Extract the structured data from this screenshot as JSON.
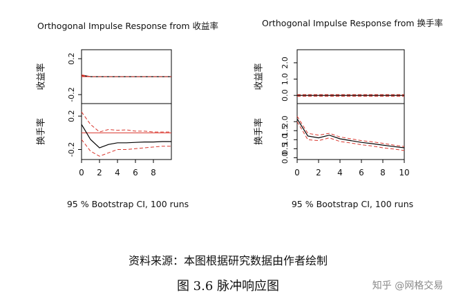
{
  "chart_data": [
    {
      "type": "line",
      "title": "Orthogonal Impulse Response from 收益率",
      "footer": "95 % Bootstrap CI,  100 runs",
      "x": [
        0,
        1,
        2,
        3,
        4,
        5,
        6,
        7,
        8,
        9,
        10
      ],
      "x_ticks": [
        "0",
        "2",
        "4",
        "6",
        "8"
      ],
      "panels": [
        {
          "label": "收益率",
          "ylim": [
            -0.3,
            0.3
          ],
          "y_ticks": [
            "0.2",
            "-0.2"
          ],
          "y_tick_values": [
            0.2,
            -0.2
          ],
          "zero_line": true,
          "series": [
            {
              "role": "estimate",
              "values": [
                0.015,
                0.0,
                0.0,
                0.0,
                0.0,
                0.0,
                0.0,
                0.0,
                0.0,
                0.0,
                0.0
              ]
            },
            {
              "role": "upper",
              "values": [
                0.02,
                0.0,
                0.0,
                0.0,
                0.0,
                0.0,
                0.0,
                0.0,
                0.0,
                0.0,
                0.0
              ]
            },
            {
              "role": "lower",
              "values": [
                0.01,
                0.0,
                0.0,
                0.0,
                0.0,
                0.0,
                0.0,
                0.0,
                0.0,
                0.0,
                0.0
              ]
            }
          ]
        },
        {
          "label": "换手率",
          "ylim": [
            -0.32,
            0.35
          ],
          "y_ticks": [
            "0.2",
            "-0.2"
          ],
          "y_tick_values": [
            0.2,
            -0.2
          ],
          "zero_line": true,
          "series": [
            {
              "role": "estimate",
              "values": [
                0.1,
                -0.08,
                -0.18,
                -0.14,
                -0.12,
                -0.12,
                -0.115,
                -0.11,
                -0.11,
                -0.105,
                -0.105
              ]
            },
            {
              "role": "upper",
              "values": [
                0.25,
                0.1,
                0.01,
                0.04,
                0.03,
                0.035,
                0.02,
                0.02,
                0.01,
                0.01,
                0.01
              ]
            },
            {
              "role": "lower",
              "values": [
                -0.08,
                -0.22,
                -0.28,
                -0.24,
                -0.2,
                -0.2,
                -0.19,
                -0.18,
                -0.17,
                -0.16,
                -0.16
              ]
            }
          ]
        }
      ]
    },
    {
      "type": "line",
      "title": "Orthogonal Impulse Response from 换手率",
      "footer": "95 % Bootstrap CI,  100 runs",
      "x": [
        0,
        1,
        2,
        3,
        4,
        5,
        6,
        7,
        8,
        9,
        10
      ],
      "x_ticks": [
        "0",
        "2",
        "4",
        "6",
        "8",
        "10"
      ],
      "panels": [
        {
          "label": "收益率",
          "ylim": [
            -0.5,
            2.8
          ],
          "y_ticks": [
            "0.0",
            "1.0",
            "2.0"
          ],
          "y_tick_values": [
            0.0,
            1.0,
            2.0
          ],
          "zero_line": true,
          "series": [
            {
              "role": "estimate",
              "values": [
                0,
                0,
                0,
                0,
                0,
                0,
                0,
                0,
                0,
                0,
                0
              ]
            },
            {
              "role": "upper",
              "values": [
                0.05,
                0.05,
                0.05,
                0.05,
                0.05,
                0.05,
                0.05,
                0.05,
                0.05,
                0.05,
                0.05
              ]
            },
            {
              "role": "lower",
              "values": [
                -0.05,
                -0.05,
                -0.05,
                -0.05,
                -0.05,
                -0.05,
                -0.05,
                -0.05,
                -0.05,
                -0.05,
                -0.05
              ]
            }
          ]
        },
        {
          "label": "换手率",
          "ylim": [
            -0.1,
            3.0
          ],
          "y_ticks": [
            "0.0",
            "0.5",
            "1.0",
            "1.5",
            "2.0"
          ],
          "y_tick_values": [
            0.0,
            0.5,
            1.0,
            1.5,
            2.0
          ],
          "zero_line": false,
          "series": [
            {
              "role": "estimate",
              "values": [
                2.15,
                1.2,
                1.1,
                1.25,
                1.05,
                0.95,
                0.85,
                0.78,
                0.7,
                0.62,
                0.55
              ]
            },
            {
              "role": "upper",
              "values": [
                2.3,
                1.35,
                1.25,
                1.35,
                1.15,
                1.05,
                0.95,
                0.88,
                0.8,
                0.7,
                0.62
              ]
            },
            {
              "role": "lower",
              "values": [
                2.0,
                1.0,
                0.95,
                1.1,
                0.9,
                0.82,
                0.72,
                0.65,
                0.55,
                0.48,
                0.4
              ]
            }
          ]
        }
      ]
    }
  ],
  "caption": {
    "source": "资料来源：本图根据研究数据由作者绘制",
    "figure": "图 3.6   脉冲响应图"
  },
  "watermark": "知乎 @网格交易",
  "colors": {
    "estimate": "#000000",
    "band": "#d9342b",
    "zero": "#d9342b",
    "axis": "#000000"
  }
}
